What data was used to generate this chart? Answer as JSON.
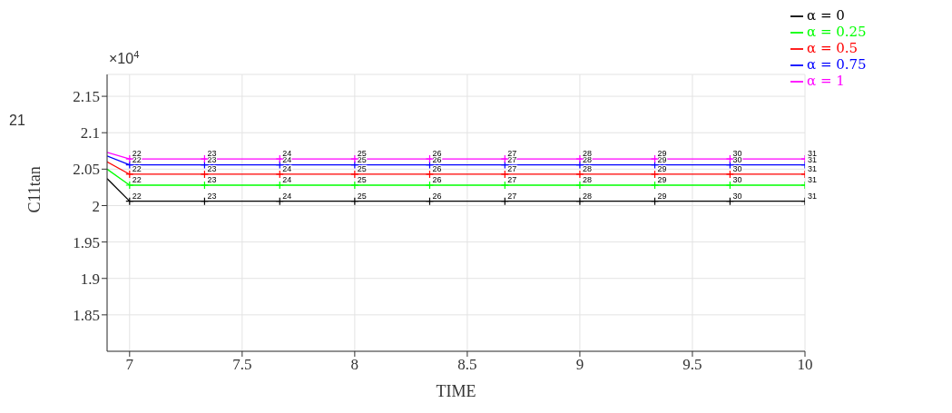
{
  "chart_data": {
    "type": "line",
    "xlabel": "TIME",
    "ylabel": "C11tan",
    "x": [
      6.9,
      7,
      7.333,
      7.667,
      8,
      8.333,
      8.667,
      9,
      9.333,
      9.667,
      10
    ],
    "series": [
      {
        "name": "α = 0",
        "color": "#000000",
        "values": [
          2.037,
          2.006,
          2.006,
          2.006,
          2.006,
          2.006,
          2.006,
          2.006,
          2.006,
          2.006,
          2.006
        ]
      },
      {
        "name": "α = 0.25",
        "color": "#00ff00",
        "values": [
          2.05,
          2.028,
          2.028,
          2.028,
          2.028,
          2.028,
          2.028,
          2.028,
          2.028,
          2.028,
          2.028
        ]
      },
      {
        "name": "α = 0.5",
        "color": "#ff0000",
        "values": [
          2.06,
          2.043,
          2.043,
          2.043,
          2.043,
          2.043,
          2.043,
          2.043,
          2.043,
          2.043,
          2.043
        ]
      },
      {
        "name": "α = 0.75",
        "color": "#0000ff",
        "values": [
          2.068,
          2.056,
          2.056,
          2.056,
          2.056,
          2.056,
          2.056,
          2.056,
          2.056,
          2.056,
          2.056
        ]
      },
      {
        "name": "α = 1",
        "color": "#ff00ff",
        "values": [
          2.073,
          2.064,
          2.064,
          2.064,
          2.064,
          2.064,
          2.064,
          2.064,
          2.064,
          2.064,
          2.064
        ]
      }
    ],
    "xlim": [
      6.9,
      10
    ],
    "xticks": [
      7,
      7.5,
      8,
      8.5,
      9,
      9.5,
      10
    ],
    "ylim": [
      1.8,
      2.18
    ],
    "yticks": [
      1.85,
      1.9,
      1.95,
      2,
      2.05,
      2.1,
      2.15
    ],
    "annotations": [
      "×10$^{4}$",
      "21",
      {
        "text": "22",
        "x": 7,
        "y": 2.006
      },
      {
        "text": "23",
        "x": 7.333,
        "y": 2.006
      },
      {
        "text": "24",
        "x": 7.667,
        "y": 2.006
      },
      {
        "text": "25",
        "x": 8,
        "y": 2.006
      },
      {
        "text": "26",
        "x": 8.333,
        "y": 2.006
      },
      {
        "text": "27",
        "x": 8.667,
        "y": 2.006
      },
      {
        "text": "28",
        "x": 9,
        "y": 2.006
      },
      {
        "text": "29",
        "x": 9.333,
        "y": 2.006
      },
      {
        "text": "30",
        "x": 9.667,
        "y": 2.006
      },
      {
        "text": "31",
        "x": 10,
        "y": 2.006
      },
      {
        "text": "22",
        "x": 7,
        "y": 2.028
      },
      {
        "text": "23",
        "x": 7.333,
        "y": 2.028
      },
      {
        "text": "24",
        "x": 7.667,
        "y": 2.028
      },
      {
        "text": "25",
        "x": 8,
        "y": 2.028
      },
      {
        "text": "26",
        "x": 8.333,
        "y": 2.028
      },
      {
        "text": "27",
        "x": 8.667,
        "y": 2.028
      },
      {
        "text": "28",
        "x": 9,
        "y": 2.028
      },
      {
        "text": "29",
        "x": 9.333,
        "y": 2.028
      },
      {
        "text": "30",
        "x": 9.667,
        "y": 2.028
      },
      {
        "text": "31",
        "x": 10,
        "y": 2.028
      },
      {
        "text": "22",
        "x": 7,
        "y": 2.043
      },
      {
        "text": "23",
        "x": 7.333,
        "y": 2.043
      },
      {
        "text": "24",
        "x": 7.667,
        "y": 2.043
      },
      {
        "text": "25",
        "x": 8,
        "y": 2.043
      },
      {
        "text": "26",
        "x": 8.333,
        "y": 2.043
      },
      {
        "text": "27",
        "x": 8.667,
        "y": 2.043
      },
      {
        "text": "28",
        "x": 9,
        "y": 2.043
      },
      {
        "text": "29",
        "x": 9.333,
        "y": 2.043
      },
      {
        "text": "30",
        "x": 9.667,
        "y": 2.043
      },
      {
        "text": "31",
        "x": 10,
        "y": 2.043
      },
      {
        "text": "22",
        "x": 7,
        "y": 2.056
      },
      {
        "text": "23",
        "x": 7.333,
        "y": 2.056
      },
      {
        "text": "24",
        "x": 7.667,
        "y": 2.056
      },
      {
        "text": "25",
        "x": 8,
        "y": 2.056
      },
      {
        "text": "26",
        "x": 8.333,
        "y": 2.056
      },
      {
        "text": "27",
        "x": 8.667,
        "y": 2.056
      },
      {
        "text": "28",
        "x": 9,
        "y": 2.056
      },
      {
        "text": "29",
        "x": 9.333,
        "y": 2.056
      },
      {
        "text": "30",
        "x": 9.667,
        "y": 2.056
      },
      {
        "text": "31",
        "x": 10,
        "y": 2.056
      },
      {
        "text": "22",
        "x": 7,
        "y": 2.064
      },
      {
        "text": "23",
        "x": 7.333,
        "y": 2.064
      },
      {
        "text": "24",
        "x": 7.667,
        "y": 2.064
      },
      {
        "text": "25",
        "x": 8,
        "y": 2.064
      },
      {
        "text": "26",
        "x": 8.333,
        "y": 2.064
      },
      {
        "text": "27",
        "x": 8.667,
        "y": 2.064
      },
      {
        "text": "28",
        "x": 9,
        "y": 2.064
      },
      {
        "text": "29",
        "x": 9.333,
        "y": 2.064
      },
      {
        "text": "30",
        "x": 9.667,
        "y": 2.064
      },
      {
        "text": "31",
        "x": 10,
        "y": 2.064
      }
    ],
    "grid": true,
    "legend": "top right",
    "marker": "cross",
    "line_style": "solid"
  }
}
